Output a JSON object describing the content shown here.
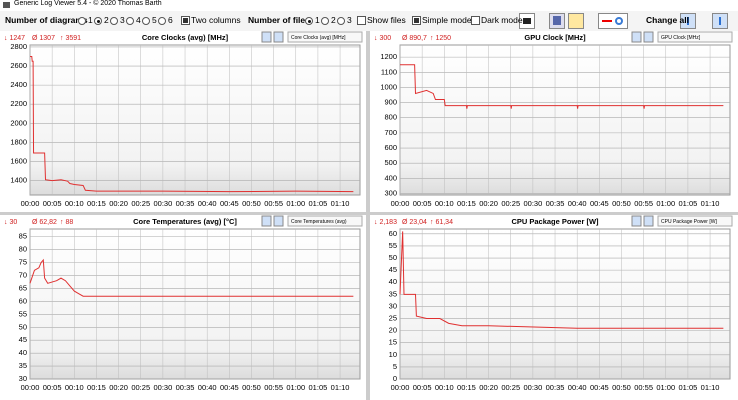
{
  "window_title": "Generic Log Viewer 5.4 - © 2020 Thomas Barth",
  "toolbar": {
    "diagrams_label": "Number of diagrams",
    "diagram_options": [
      "1",
      "2",
      "3",
      "4",
      "5",
      "6"
    ],
    "diagram_selected": "2",
    "two_columns": {
      "label": "Two columns",
      "checked": true
    },
    "files_label": "Number of files",
    "file_options": [
      "1",
      "2",
      "3"
    ],
    "file_selected": "1",
    "show_files": {
      "label": "Show files",
      "checked": false
    },
    "simple_mode": {
      "label": "Simple mode",
      "checked": true
    },
    "dark_mode": {
      "label": "Dark mode",
      "checked": false
    },
    "change_all": "Change all"
  },
  "chart_data": [
    {
      "type": "line",
      "title": "Core Clocks (avg) [MHz]",
      "stats": [
        "↓ 1247",
        "Ø 1307",
        "↑ 3591"
      ],
      "selector": "Core Clocks (avg) [MHz]",
      "color": "#e03030",
      "grid": true,
      "x": [
        0,
        0.4,
        0.5,
        0.7,
        0.8,
        3.3,
        3.5,
        5,
        7,
        8.5,
        9,
        10,
        12,
        12.5,
        15,
        30,
        45,
        60,
        73
      ],
      "values": [
        2700,
        2700,
        2650,
        2650,
        1690,
        1690,
        1410,
        1400,
        1410,
        1395,
        1370,
        1360,
        1350,
        1300,
        1290,
        1290,
        1285,
        1290,
        1285
      ],
      "xlim": [
        0,
        74.5
      ],
      "ylim": [
        1250,
        2820
      ],
      "yticks": [
        1400,
        1600,
        1800,
        2000,
        2200,
        2400,
        2600,
        2800
      ],
      "xticks": [
        {
          "value": 0,
          "label": "00:00"
        },
        {
          "value": 5,
          "label": "00:05"
        },
        {
          "value": 10,
          "label": "00:10"
        },
        {
          "value": 15,
          "label": "00:15"
        },
        {
          "value": 20,
          "label": "00:20"
        },
        {
          "value": 25,
          "label": "00:25"
        },
        {
          "value": 30,
          "label": "00:30"
        },
        {
          "value": 35,
          "label": "00:35"
        },
        {
          "value": 40,
          "label": "00:40"
        },
        {
          "value": 45,
          "label": "00:45"
        },
        {
          "value": 50,
          "label": "00:50"
        },
        {
          "value": 55,
          "label": "00:55"
        },
        {
          "value": 60,
          "label": "01:00"
        },
        {
          "value": 65,
          "label": "01:05"
        },
        {
          "value": 70,
          "label": "01:10"
        }
      ]
    },
    {
      "type": "line",
      "title": "GPU Clock [MHz]",
      "stats": [
        "↓ 300",
        "Ø 890,7",
        "↑ 1250"
      ],
      "selector": "GPU Clock [MHz]",
      "color": "#e03030",
      "grid": true,
      "x": [
        0,
        3.3,
        3.5,
        6,
        7.5,
        8,
        10,
        10.2,
        15,
        15.1,
        15.2,
        25,
        25.1,
        25.2,
        40,
        40.1,
        40.2,
        55,
        55.1,
        55.2,
        73
      ],
      "values": [
        1150,
        1150,
        960,
        980,
        960,
        920,
        920,
        880,
        880,
        860,
        880,
        880,
        860,
        880,
        880,
        860,
        880,
        880,
        860,
        880,
        880
      ],
      "xlim": [
        0,
        74.5
      ],
      "ylim": [
        290,
        1280
      ],
      "yticks": [
        300,
        400,
        500,
        600,
        700,
        800,
        900,
        1000,
        1100,
        1200
      ],
      "xticks": [
        {
          "value": 0,
          "label": "00:00"
        },
        {
          "value": 5,
          "label": "00:05"
        },
        {
          "value": 10,
          "label": "00:10"
        },
        {
          "value": 15,
          "label": "00:15"
        },
        {
          "value": 20,
          "label": "00:20"
        },
        {
          "value": 25,
          "label": "00:25"
        },
        {
          "value": 30,
          "label": "00:30"
        },
        {
          "value": 35,
          "label": "00:35"
        },
        {
          "value": 40,
          "label": "00:40"
        },
        {
          "value": 45,
          "label": "00:45"
        },
        {
          "value": 50,
          "label": "00:50"
        },
        {
          "value": 55,
          "label": "00:55"
        },
        {
          "value": 60,
          "label": "01:00"
        },
        {
          "value": 65,
          "label": "01:05"
        },
        {
          "value": 70,
          "label": "01:10"
        }
      ]
    },
    {
      "type": "line",
      "title": "Core Temperatures (avg) [°C]",
      "stats": [
        "↓ 30",
        "Ø 62,82",
        "↑ 88"
      ],
      "selector": "Core Temperatures (avg)",
      "color": "#e03030",
      "grid": true,
      "x": [
        0,
        1,
        2,
        2.5,
        3,
        3.3,
        4,
        6,
        7,
        8,
        9,
        10,
        11,
        12,
        20,
        40,
        73
      ],
      "values": [
        67,
        72,
        73,
        75,
        76,
        69,
        67,
        68,
        69,
        68,
        66,
        64,
        63,
        62,
        62,
        62,
        62
      ],
      "xlim": [
        0,
        74.5
      ],
      "ylim": [
        30,
        88
      ],
      "yticks": [
        30,
        35,
        40,
        45,
        50,
        55,
        60,
        65,
        70,
        75,
        80,
        85
      ],
      "xticks": [
        {
          "value": 0,
          "label": "00:00"
        },
        {
          "value": 5,
          "label": "00:05"
        },
        {
          "value": 10,
          "label": "00:10"
        },
        {
          "value": 15,
          "label": "00:15"
        },
        {
          "value": 20,
          "label": "00:20"
        },
        {
          "value": 25,
          "label": "00:25"
        },
        {
          "value": 30,
          "label": "00:30"
        },
        {
          "value": 35,
          "label": "00:35"
        },
        {
          "value": 40,
          "label": "00:40"
        },
        {
          "value": 45,
          "label": "00:45"
        },
        {
          "value": 50,
          "label": "00:50"
        },
        {
          "value": 55,
          "label": "00:55"
        },
        {
          "value": 60,
          "label": "01:00"
        },
        {
          "value": 65,
          "label": "01:05"
        },
        {
          "value": 70,
          "label": "01:10"
        }
      ]
    },
    {
      "type": "line",
      "title": "CPU Package Power [W]",
      "stats": [
        "↓ 2,183",
        "Ø 23,04",
        "↑ 61,34"
      ],
      "selector": "CPU Package Power [W]",
      "color": "#e03030",
      "grid": true,
      "x": [
        0,
        0.6,
        0.9,
        3.5,
        3.7,
        6,
        9,
        11,
        14,
        20,
        40,
        73
      ],
      "values": [
        35,
        61,
        35,
        35,
        26,
        25,
        25,
        23,
        22,
        22,
        21,
        21
      ],
      "xlim": [
        0,
        74.5
      ],
      "ylim": [
        0,
        62
      ],
      "yticks": [
        0,
        5,
        10,
        15,
        20,
        25,
        30,
        35,
        40,
        45,
        50,
        55,
        60
      ],
      "xticks": [
        {
          "value": 0,
          "label": "00:00"
        },
        {
          "value": 5,
          "label": "00:05"
        },
        {
          "value": 10,
          "label": "00:10"
        },
        {
          "value": 15,
          "label": "00:15"
        },
        {
          "value": 20,
          "label": "00:20"
        },
        {
          "value": 25,
          "label": "00:25"
        },
        {
          "value": 30,
          "label": "00:30"
        },
        {
          "value": 35,
          "label": "00:35"
        },
        {
          "value": 40,
          "label": "00:40"
        },
        {
          "value": 45,
          "label": "00:45"
        },
        {
          "value": 50,
          "label": "00:50"
        },
        {
          "value": 55,
          "label": "00:55"
        },
        {
          "value": 60,
          "label": "01:00"
        },
        {
          "value": 65,
          "label": "01:05"
        },
        {
          "value": 70,
          "label": "01:10"
        }
      ]
    }
  ]
}
